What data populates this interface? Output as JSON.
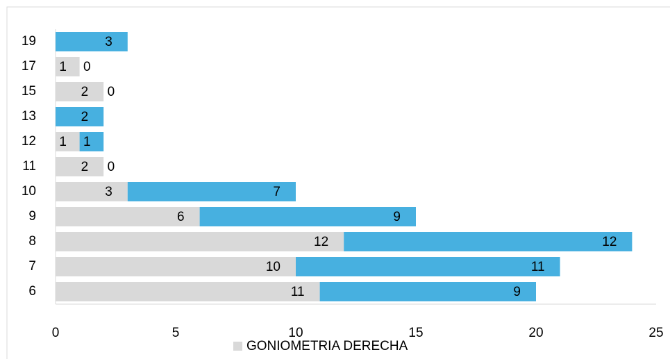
{
  "chart_data": {
    "type": "stacked_barh",
    "categories": [
      "6",
      "7",
      "8",
      "9",
      "10",
      "11",
      "12",
      "13",
      "15",
      "17",
      "19"
    ],
    "series": [
      {
        "name": "GONIOMETRIA DERECHA",
        "color": "#d9d9d9",
        "values": [
          11,
          10,
          12,
          6,
          3,
          2,
          1,
          0,
          2,
          1,
          0
        ]
      },
      {
        "color": "#47b0e0",
        "values": [
          9,
          11,
          12,
          9,
          7,
          0,
          1,
          2,
          0,
          0,
          3
        ]
      }
    ],
    "xlim": [
      0,
      25
    ],
    "xticks": [
      0,
      5,
      10,
      15,
      20,
      25
    ],
    "grid": false
  }
}
